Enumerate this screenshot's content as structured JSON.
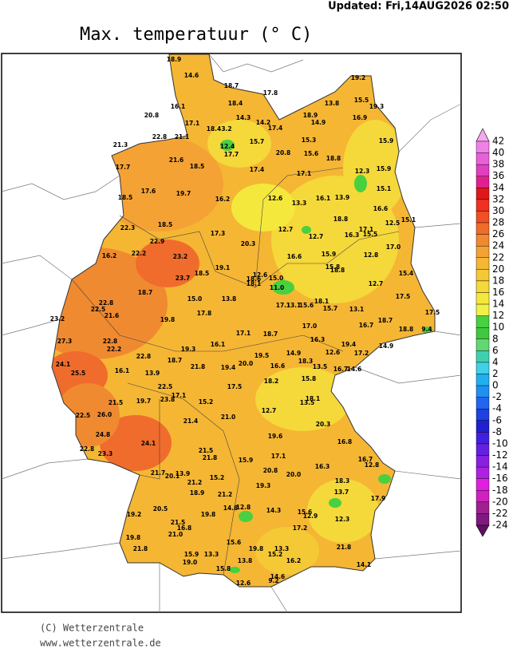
{
  "header": {
    "updated": "Updated: Fri,14AUG2026  02:50",
    "title": "Max. temperatuur (° C)"
  },
  "legend": {
    "labels": [
      42,
      40,
      38,
      36,
      34,
      32,
      30,
      28,
      26,
      24,
      22,
      20,
      18,
      16,
      14,
      12,
      10,
      8,
      6,
      4,
      2,
      0,
      -2,
      -4,
      -6,
      -8,
      -10,
      -12,
      -14,
      -16,
      -18,
      -20,
      -22,
      -24
    ],
    "colors": [
      "#f4a8f0",
      "#f080e8",
      "#e860d8",
      "#e040c0",
      "#e02090",
      "#e01818",
      "#f03020",
      "#f05024",
      "#f06c2c",
      "#f08a30",
      "#f5a234",
      "#f5b634",
      "#f5c836",
      "#f5d83a",
      "#f5e83c",
      "#f0f048",
      "#48d040",
      "#40c840",
      "#60d870",
      "#40d0b0",
      "#40d0e8",
      "#20b0f0",
      "#2090f0",
      "#2064f0",
      "#2040e0",
      "#2020d0",
      "#4020e0",
      "#6420e0",
      "#8820e0",
      "#b020e0",
      "#e020e0",
      "#d020c0",
      "#a02090",
      "#801880",
      "#601060"
    ]
  },
  "stations": [
    "18.9",
    "14.6",
    "18.7",
    "17.8",
    "19.2",
    "15.5",
    "19.3",
    "13.8",
    "16.1",
    "18.4",
    "20.8",
    "14.3",
    "14.2",
    "18.9",
    "14.9",
    "16.9",
    "17.1",
    "18.4",
    "3.2",
    "17.4",
    "22.8",
    "21.1",
    "12.4",
    "17.7",
    "15.7",
    "15.3",
    "15.9",
    "21.3",
    "20.8",
    "15.6",
    "18.8",
    "21.6",
    "18.5",
    "17.4",
    "17.1",
    "12.3",
    "15.9",
    "17.7",
    "17.6",
    "19.7",
    "18.5",
    "12.6",
    "13.3",
    "16.1",
    "13.9",
    "15.1",
    "16.2",
    "16.6",
    "18.8",
    "15.1",
    "12.7",
    "12.7",
    "12.5",
    "17.1",
    "16.3",
    "15.5",
    "17.0",
    "22.3",
    "18.5",
    "17.3",
    "20.3",
    "22.9",
    "22.2",
    "23.2",
    "16.2",
    "16.6",
    "15.9",
    "12.8",
    "19.1",
    "15.8",
    "18.8",
    "15.4",
    "18.5",
    "23.7",
    "12.6",
    "15.0",
    "18.6",
    "18.1",
    "11.0",
    "18.7",
    "12.7",
    "22.8",
    "22.5",
    "13.8",
    "15.0",
    "17.1",
    "13.1",
    "15.6",
    "18.1",
    "15.7",
    "13.1",
    "17.5",
    "23.2",
    "21.6",
    "19.8",
    "17.8",
    "17.5",
    "18.7",
    "16.7",
    "17.0",
    "18.8",
    "9.4",
    "22.8",
    "27.3",
    "22.2",
    "17.1",
    "18.7",
    "16.3",
    "19.4",
    "16.1",
    "22.8",
    "19.3",
    "18.7",
    "12.6",
    "17.2",
    "14.9",
    "19.5",
    "14.9",
    "21.8",
    "24.1",
    "19.4",
    "20.0",
    "16.6",
    "18.3",
    "13.5",
    "16.7",
    "14.6",
    "25.5",
    "16.1",
    "13.9",
    "18.2",
    "15.8",
    "22.5",
    "17.5",
    "18.1",
    "19.7",
    "17.1",
    "23.8",
    "21.5",
    "15.2",
    "12.7",
    "13.5",
    "22.5",
    "26.0",
    "21.4",
    "21.0",
    "20.3",
    "24.8",
    "24.1",
    "19.6",
    "16.8",
    "22.8",
    "23.3",
    "21.5",
    "21.8",
    "15.9",
    "17.1",
    "16.7",
    "12.8",
    "21.7",
    "13.9",
    "20.1",
    "20.8",
    "20.0",
    "16.3",
    "15.2",
    "21.2",
    "19.3",
    "18.3",
    "18.9",
    "21.2",
    "13.7",
    "17.9",
    "20.5",
    "14.8",
    "12.8",
    "14.3",
    "15.6",
    "12.9",
    "19.2",
    "19.8",
    "21.5",
    "16.8",
    "21.0",
    "12.3",
    "17.2",
    "19.8",
    "15.6",
    "19.8",
    "13.3",
    "21.8",
    "15.2",
    "21.8",
    "15.9",
    "13.3",
    "13.8",
    "16.2",
    "19.0",
    "14.1",
    "15.8",
    "14.6",
    "9.2",
    "12.6"
  ],
  "footer": {
    "copyright": "(C) Wetterzentrale",
    "url": "www.wetterzentrale.de"
  }
}
